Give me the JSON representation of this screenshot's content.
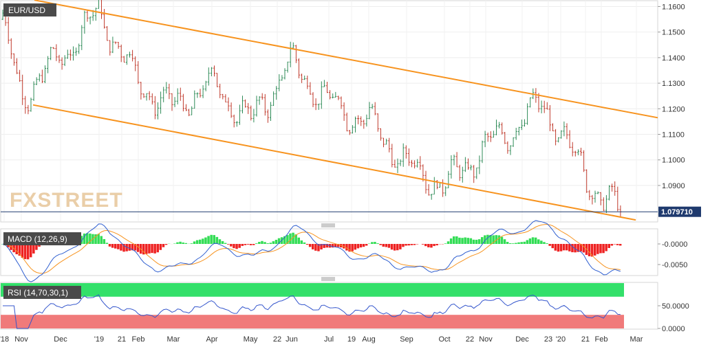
{
  "chart_data": {
    "type": "candlestick",
    "symbol": "EUR/USD",
    "price_axis": {
      "ticks": [
        "1.1600",
        "1.1500",
        "1.1400",
        "1.1300",
        "1.1200",
        "1.1100",
        "1.1000",
        "1.0900"
      ],
      "range": [
        1.076,
        1.162
      ],
      "last_price_label": "1.079710",
      "last_price": 1.07971
    },
    "x_axis": {
      "labels": [
        "'18",
        "Nov",
        "Dec",
        "'19",
        "21",
        "Feb",
        "Mar",
        "Apr",
        "May",
        "22",
        "Jun",
        "Jul",
        "19",
        "Aug",
        "Sep",
        "Oct",
        "22",
        "Nov",
        "Dec",
        "23",
        "'20",
        "21",
        "Feb",
        "Mar"
      ]
    },
    "channel": {
      "color": "#f7931e",
      "upper": [
        [
          "Oct '18",
          1.1625
        ],
        [
          "Mar '20",
          1.1165
        ]
      ],
      "lower": [
        [
          "Nov '18",
          1.1215
        ],
        [
          "Feb '20",
          1.0765
        ]
      ]
    },
    "price_anchors": [
      [
        "Oct '18",
        1.155
      ],
      [
        "Nov '18",
        1.125
      ],
      [
        "Dec '18",
        1.14
      ],
      [
        "Jan '19",
        1.158
      ],
      [
        "Feb '19",
        1.13
      ],
      [
        "Mar '19",
        1.12
      ],
      [
        "Apr '19",
        1.13
      ],
      [
        "May '19",
        1.115
      ],
      [
        "Jun '19",
        1.138
      ],
      [
        "Jul '19",
        1.122
      ],
      [
        "Aug '19",
        1.115
      ],
      [
        "Sep '19",
        1.098
      ],
      [
        "Oct '19",
        1.09
      ],
      [
        "Nov '19",
        1.105
      ],
      [
        "Dec '19",
        1.115
      ],
      [
        "Dec '19",
        1.122
      ],
      [
        "Jan '20",
        1.11
      ],
      [
        "Feb '20",
        1.085
      ],
      [
        "Feb '20",
        1.0797
      ]
    ],
    "macd": {
      "label": "MACD (12,26,9)",
      "ticks": [
        "-0.0000",
        "-0.0050"
      ],
      "range": [
        -0.0075,
        0.0035
      ]
    },
    "rsi": {
      "label": "RSI (14,70,30,1)",
      "ticks": [
        "50.0000",
        "0.0000"
      ],
      "range": [
        0,
        100
      ],
      "overbought": 70,
      "oversold": 30
    },
    "watermark": "FXSTREET",
    "colors": {
      "up": "#2e8b57",
      "down": "#c0392b",
      "channel": "#f7931e",
      "macd_line": "#2f5fd0",
      "signal_line": "#f7931e",
      "hist_pos": "#33dd55",
      "hist_neg": "#ee2222",
      "rsi_line": "#3355cc",
      "rsi_ob_fill": "#33e06a",
      "rsi_os_fill": "#f07a7a",
      "label_bg": "#4a4a4a"
    }
  }
}
